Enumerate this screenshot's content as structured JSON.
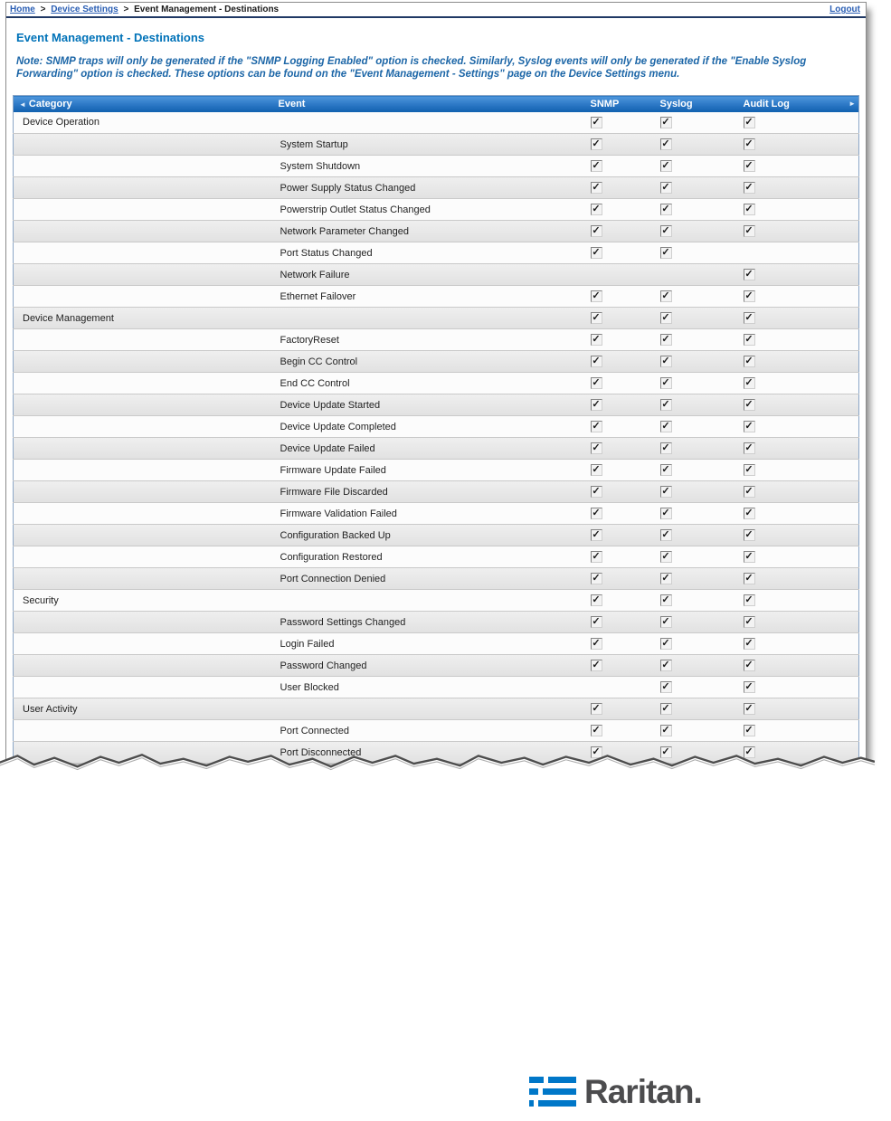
{
  "breadcrumb": {
    "items": [
      "Home",
      "Device Settings",
      "Event Management - Destinations"
    ],
    "separator": ">",
    "logout": "Logout"
  },
  "page": {
    "title": "Event Management - Destinations",
    "note": "Note: SNMP traps will only be generated if the \"SNMP Logging Enabled\" option is checked. Similarly, Syslog events will only be generated if the \"Enable Syslog Forwarding\" option is checked. These options can be found on the \"Event Management - Settings\" page on the Device Settings menu."
  },
  "icons": {
    "scroll_left": "◄",
    "scroll_right": "►",
    "check": "✓"
  },
  "colors": {
    "header_blue_top": "#4f97dd",
    "header_blue_bottom": "#1060ae",
    "title_blue": "#0072b8",
    "note_blue": "#1c66a7",
    "link_blue": "#2b5fb4",
    "logo_blue": "#0077c8",
    "logo_text_gray": "#4c4c4e"
  },
  "table": {
    "columns": [
      "Category",
      "Event",
      "SNMP",
      "Syslog",
      "Audit Log"
    ],
    "rows": [
      {
        "category": "Device Operation",
        "event": "",
        "snmp": true,
        "syslog": true,
        "audit": true
      },
      {
        "category": "",
        "event": "System Startup",
        "snmp": true,
        "syslog": true,
        "audit": true
      },
      {
        "category": "",
        "event": "System Shutdown",
        "snmp": true,
        "syslog": true,
        "audit": true
      },
      {
        "category": "",
        "event": "Power Supply Status Changed",
        "snmp": true,
        "syslog": true,
        "audit": true
      },
      {
        "category": "",
        "event": "Powerstrip Outlet Status Changed",
        "snmp": true,
        "syslog": true,
        "audit": true
      },
      {
        "category": "",
        "event": "Network Parameter Changed",
        "snmp": true,
        "syslog": true,
        "audit": true
      },
      {
        "category": "",
        "event": "Port Status Changed",
        "snmp": true,
        "syslog": true,
        "audit": false
      },
      {
        "category": "",
        "event": "Network Failure",
        "snmp": false,
        "syslog": false,
        "audit": true
      },
      {
        "category": "",
        "event": "Ethernet Failover",
        "snmp": true,
        "syslog": true,
        "audit": true
      },
      {
        "category": "Device Management",
        "event": "",
        "snmp": true,
        "syslog": true,
        "audit": true
      },
      {
        "category": "",
        "event": "FactoryReset",
        "snmp": true,
        "syslog": true,
        "audit": true
      },
      {
        "category": "",
        "event": "Begin CC Control",
        "snmp": true,
        "syslog": true,
        "audit": true
      },
      {
        "category": "",
        "event": "End CC Control",
        "snmp": true,
        "syslog": true,
        "audit": true
      },
      {
        "category": "",
        "event": "Device Update Started",
        "snmp": true,
        "syslog": true,
        "audit": true
      },
      {
        "category": "",
        "event": "Device Update Completed",
        "snmp": true,
        "syslog": true,
        "audit": true
      },
      {
        "category": "",
        "event": "Device Update Failed",
        "snmp": true,
        "syslog": true,
        "audit": true
      },
      {
        "category": "",
        "event": "Firmware Update Failed",
        "snmp": true,
        "syslog": true,
        "audit": true
      },
      {
        "category": "",
        "event": "Firmware File Discarded",
        "snmp": true,
        "syslog": true,
        "audit": true
      },
      {
        "category": "",
        "event": "Firmware Validation Failed",
        "snmp": true,
        "syslog": true,
        "audit": true
      },
      {
        "category": "",
        "event": "Configuration Backed Up",
        "snmp": true,
        "syslog": true,
        "audit": true
      },
      {
        "category": "",
        "event": "Configuration Restored",
        "snmp": true,
        "syslog": true,
        "audit": true
      },
      {
        "category": "",
        "event": "Port Connection Denied",
        "snmp": true,
        "syslog": true,
        "audit": true
      },
      {
        "category": "Security",
        "event": "",
        "snmp": true,
        "syslog": true,
        "audit": true
      },
      {
        "category": "",
        "event": "Password Settings Changed",
        "snmp": true,
        "syslog": true,
        "audit": true
      },
      {
        "category": "",
        "event": "Login Failed",
        "snmp": true,
        "syslog": true,
        "audit": true
      },
      {
        "category": "",
        "event": "Password Changed",
        "snmp": true,
        "syslog": true,
        "audit": true
      },
      {
        "category": "",
        "event": "User Blocked",
        "snmp": false,
        "syslog": true,
        "audit": true
      },
      {
        "category": "User Activity",
        "event": "",
        "snmp": true,
        "syslog": true,
        "audit": true
      },
      {
        "category": "",
        "event": "Port Connected",
        "snmp": true,
        "syslog": true,
        "audit": true
      },
      {
        "category": "",
        "event": "Port Disconnected",
        "snmp": true,
        "syslog": true,
        "audit": true
      }
    ]
  },
  "logo": {
    "text": "Raritan."
  }
}
